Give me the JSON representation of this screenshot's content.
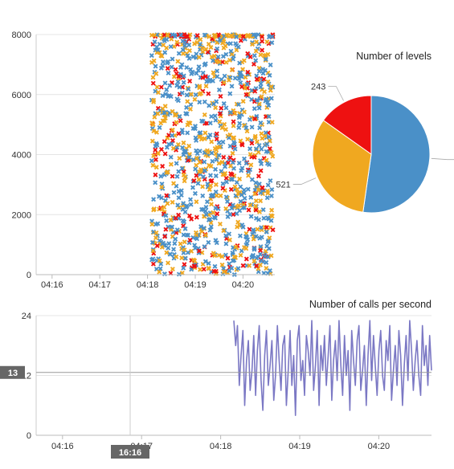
{
  "chart_data": [
    {
      "type": "scatter",
      "title": "",
      "xlabel": "",
      "ylabel": "",
      "ylim": [
        0,
        8000
      ],
      "y_ticks": [
        "0",
        "2000",
        "4000",
        "6000",
        "8000"
      ],
      "x_ticks": [
        "04:16",
        "04:17",
        "04:18",
        "04:19",
        "04:20"
      ],
      "x_range": [
        "04:15:40",
        "04:20:40"
      ],
      "x_data_range": [
        "04:18:05",
        "04:20:38"
      ],
      "marker": "x",
      "grid": "horizontal",
      "series": [
        {
          "color": "#4a90c8",
          "share": 0.52
        },
        {
          "color": "#f0a820",
          "share": 0.33
        },
        {
          "color": "#ee1111",
          "share": 0.15
        }
      ]
    },
    {
      "type": "pie",
      "title": "Number of levels",
      "slices": [
        {
          "value": 836,
          "color": "#4a90c8",
          "label": ""
        },
        {
          "value": 521,
          "color": "#f0a820",
          "label": "521"
        },
        {
          "value": 243,
          "color": "#ee1111",
          "label": "243"
        }
      ]
    },
    {
      "type": "line",
      "title": "Number of calls per second",
      "ylim": [
        0,
        24
      ],
      "y_ticks": [
        "0",
        "12",
        "24"
      ],
      "x_ticks": [
        "04:16",
        "04:17",
        "04:18",
        "04:19",
        "04:20"
      ],
      "x_range": [
        "04:15:40",
        "04:20:40"
      ],
      "line_color": "#7b78c4",
      "series_start": "04:18:10",
      "series_step_seconds": 1,
      "values": [
        23,
        18,
        22,
        10,
        16,
        21,
        6,
        15,
        19,
        9,
        13,
        20,
        8,
        17,
        22,
        11,
        5,
        16,
        21,
        10,
        14,
        19,
        7,
        12,
        22,
        15,
        9,
        18,
        20,
        6,
        13,
        21,
        10,
        16,
        4,
        19,
        22,
        11,
        15,
        8,
        20,
        17,
        12,
        23,
        9,
        14,
        21,
        6,
        18,
        13,
        20,
        10,
        16,
        22,
        7,
        15,
        19,
        11,
        23,
        14,
        8,
        20,
        12,
        17,
        5,
        21,
        15,
        10,
        19,
        22,
        9,
        13,
        18,
        6,
        16,
        23,
        11,
        20,
        14,
        8,
        17,
        21,
        12,
        9,
        19,
        15,
        22,
        7,
        13,
        18,
        10,
        21,
        16,
        6,
        14,
        20,
        11,
        23,
        17,
        9,
        15,
        19,
        12,
        8,
        22,
        14,
        18,
        10,
        20,
        13
      ],
      "crosshair_y": "13",
      "crosshair_x": "16:16"
    }
  ]
}
